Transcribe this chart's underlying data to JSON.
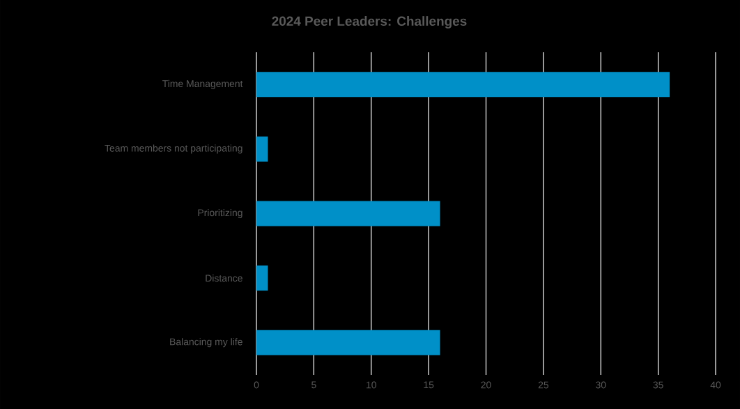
{
  "chart_data": {
    "type": "bar",
    "orientation": "horizontal",
    "title": "2024 Peer Leaders: Challenges",
    "categories": [
      "Time Management",
      "Team members not participating",
      "Prioritizing",
      "Distance",
      "Balancing my life"
    ],
    "values": [
      36,
      1,
      16,
      1,
      16
    ],
    "color": "#0090c8",
    "xlim": [
      0,
      40
    ],
    "xticks": [
      0,
      5,
      10,
      15,
      20,
      25,
      30,
      35,
      40
    ],
    "grid": "x"
  }
}
